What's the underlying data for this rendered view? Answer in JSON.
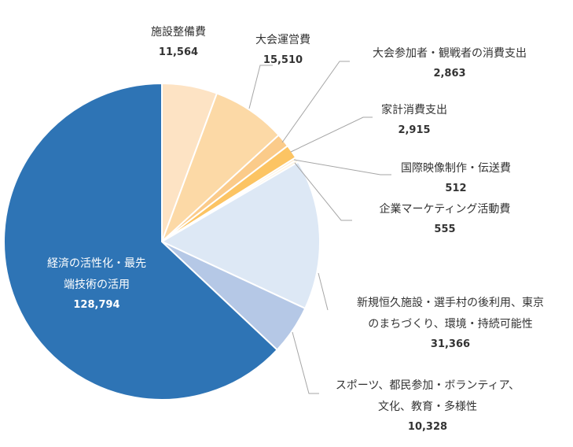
{
  "chart_data": {
    "type": "pie",
    "title": "",
    "start_angle_deg": 0,
    "direction": "clockwise",
    "slices": [
      {
        "label": [
          "施設整備費"
        ],
        "value": 11564,
        "value_label": "11,564",
        "color": "#FDE3C4"
      },
      {
        "label": [
          "大会運営費"
        ],
        "value": 15510,
        "value_label": "15,510",
        "color": "#FCD9A6"
      },
      {
        "label": [
          "大会参加者・観戦者の消費支出"
        ],
        "value": 2863,
        "value_label": "2,863",
        "color": "#FBCB8A"
      },
      {
        "label": [
          "家計消費支出"
        ],
        "value": 2915,
        "value_label": "2,915",
        "color": "#FCC463"
      },
      {
        "label": [
          "国際映像制作・伝送費"
        ],
        "value": 512,
        "value_label": "512",
        "color": "#FDE9C8"
      },
      {
        "label": [
          "企業マーケティング活動費"
        ],
        "value": 555,
        "value_label": "555",
        "color": "#FEF2DE"
      },
      {
        "label": [
          "新規恒久施設・選手村の後利用、東京",
          "のまちづくり、環境・持続可能性"
        ],
        "value": 31366,
        "value_label": "31,366",
        "color": "#DDE8F5"
      },
      {
        "label": [
          "スポーツ、都民参加・ボランティア、",
          "文化、教育・多様性"
        ],
        "value": 10328,
        "value_label": "10,328",
        "color": "#B5C8E6"
      },
      {
        "label": [
          "経済の活性化・最先",
          "端技術の活用"
        ],
        "value": 128794,
        "value_label": "128,794",
        "color": "#2E74B5"
      }
    ]
  }
}
